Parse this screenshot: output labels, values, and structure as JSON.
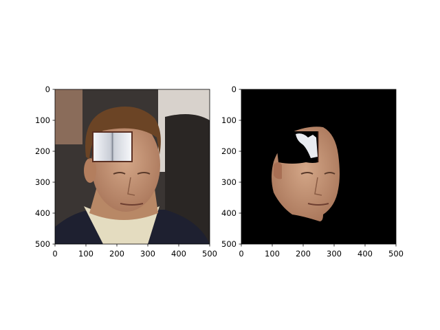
{
  "chart_data": [
    {
      "type": "image",
      "content": "photo of a man's face with an open-book patch covering the forehead",
      "xlim": [
        0,
        500
      ],
      "ylim": [
        500,
        0
      ],
      "xticks": [
        0,
        100,
        200,
        300,
        400,
        500
      ],
      "yticks": [
        0,
        100,
        200,
        300,
        400,
        500
      ],
      "patch_region": {
        "x": [
          120,
          250
        ],
        "y": [
          140,
          235
        ]
      }
    },
    {
      "type": "image",
      "content": "segmented face on black background with the book patch region cut out",
      "xlim": [
        0,
        500
      ],
      "ylim": [
        500,
        0
      ],
      "xticks": [
        0,
        100,
        200,
        300,
        400,
        500
      ],
      "yticks": [
        0,
        100,
        200,
        300,
        400,
        500
      ]
    }
  ],
  "colors": {
    "background": "#ffffff",
    "axes_edge": "#000000",
    "mask_background": "#000000",
    "skin": "#c79a78",
    "hair": "#6b4425",
    "suit": "#1e2030",
    "shirt": "#e4dcc0"
  }
}
